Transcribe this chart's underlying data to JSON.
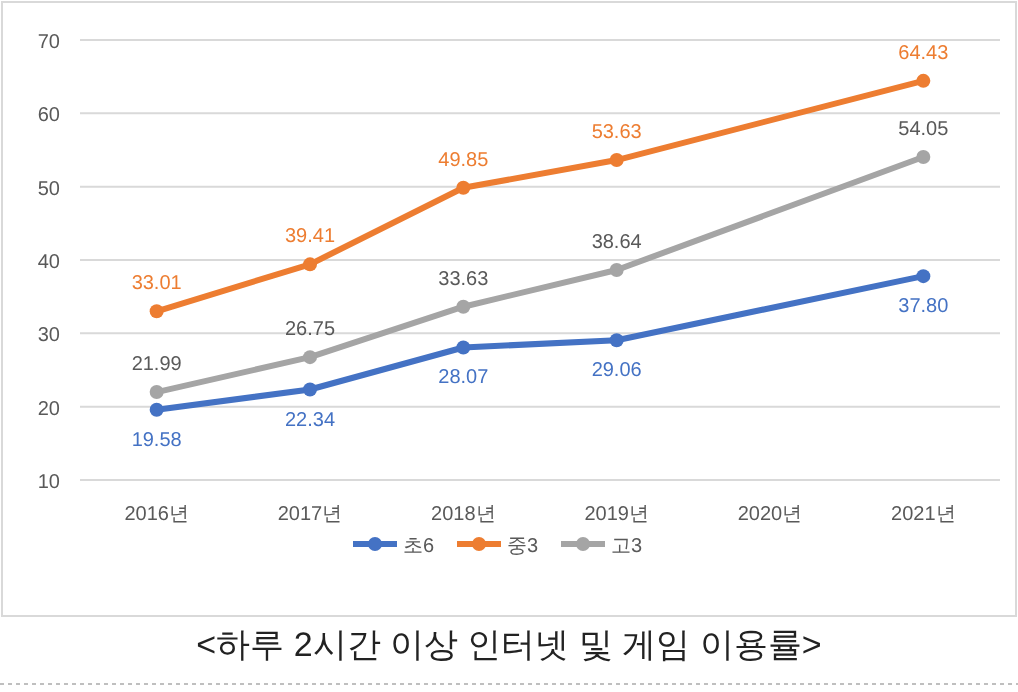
{
  "chart_data": {
    "type": "line",
    "categories": [
      "2016년",
      "2017년",
      "2018년",
      "2019년",
      "2020년",
      "2021년"
    ],
    "series": [
      {
        "name": "초6",
        "color": "#4472c4",
        "values": [
          19.58,
          22.34,
          28.07,
          29.06,
          null,
          37.8
        ],
        "value_labels": [
          "19.58",
          "22.34",
          "28.07",
          "29.06",
          null,
          "37.80"
        ]
      },
      {
        "name": "중3",
        "color": "#ed7d31",
        "values": [
          33.01,
          39.41,
          49.85,
          53.63,
          null,
          64.43
        ],
        "value_labels": [
          "33.01",
          "39.41",
          "49.85",
          "53.63",
          null,
          "64.43"
        ]
      },
      {
        "name": "고3",
        "color": "#a5a5a5",
        "values": [
          21.99,
          26.75,
          33.63,
          38.64,
          null,
          54.05
        ],
        "value_labels": [
          "21.99",
          "26.75",
          "33.63",
          "38.64",
          null,
          "54.05"
        ]
      }
    ],
    "ylim": [
      10,
      70
    ],
    "yticks": [
      10,
      20,
      30,
      40,
      50,
      60,
      70
    ],
    "grid": "y",
    "legend": "bottom",
    "marker": "circle",
    "line_style": "solid",
    "annotations": [
      "<하루 2시간 이상 인터넷 및 게임 이용률>"
    ]
  }
}
